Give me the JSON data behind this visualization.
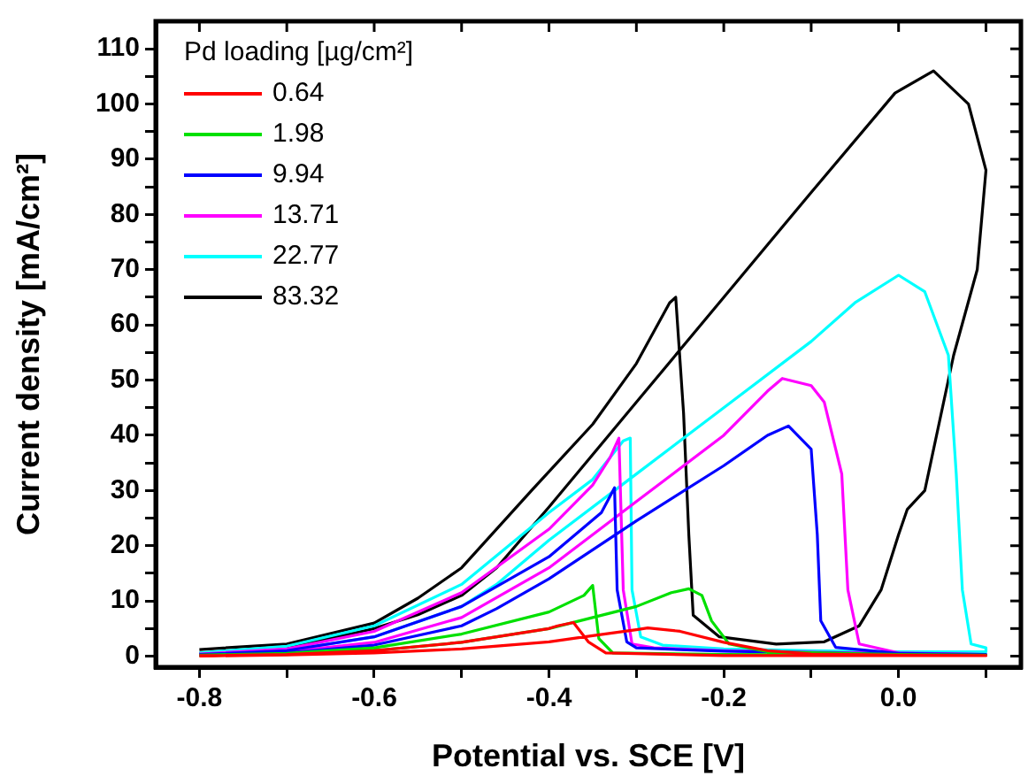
{
  "chart_data": {
    "type": "line",
    "xlabel": "Potential vs. SCE [V]",
    "ylabel": "Current density [mA/cm²]",
    "legend_title": "Pd loading [µg/cm²]",
    "legend": "top left",
    "grid": false,
    "marker": "none",
    "line_style": "solid",
    "xlim": [
      -0.85,
      0.14
    ],
    "ylim": [
      -2,
      115
    ],
    "xticks": [
      -0.8,
      {
        "value": -0.7,
        "label": null
      },
      -0.6,
      {
        "value": -0.5,
        "label": null
      },
      -0.4,
      {
        "value": -0.3,
        "label": null
      },
      -0.2,
      {
        "value": -0.1,
        "label": null
      },
      {
        "value": 0,
        "label": "0.0"
      },
      {
        "value": 0.1,
        "label": null
      }
    ],
    "yticks": [
      0,
      {
        "value": 5,
        "label": null
      },
      10,
      {
        "value": 15,
        "label": null
      },
      20,
      {
        "value": 25,
        "label": null
      },
      30,
      {
        "value": 35,
        "label": null
      },
      40,
      {
        "value": 45,
        "label": null
      },
      50,
      {
        "value": 55,
        "label": null
      },
      60,
      {
        "value": 65,
        "label": null
      },
      70,
      {
        "value": 75,
        "label": null
      },
      80,
      {
        "value": 85,
        "label": null
      },
      90,
      {
        "value": 95,
        "label": null
      },
      100,
      {
        "value": 105,
        "label": null
      },
      110
    ],
    "series": [
      {
        "name": "0.64",
        "color": "#ff0000",
        "x": [
          -0.8,
          -0.7,
          -0.6,
          -0.5,
          -0.4,
          -0.35,
          -0.3,
          -0.287,
          -0.25,
          -0.2,
          -0.15,
          -0.1,
          0,
          0.1,
          0.1,
          -0.2,
          -0.335,
          -0.355,
          -0.372,
          -0.39,
          -0.4,
          -0.5,
          -0.6,
          -0.7,
          -0.8
        ],
        "values": [
          0,
          0.2,
          0.6,
          1.3,
          2.6,
          3.7,
          4.8,
          5.1,
          4.5,
          2.5,
          1,
          0.4,
          0.2,
          0.1,
          0.1,
          0.1,
          0.6,
          2.6,
          6.1,
          5.5,
          5,
          2.5,
          1,
          0.3,
          0.1
        ]
      },
      {
        "name": "1.98",
        "color": "#00e000",
        "x": [
          -0.8,
          -0.7,
          -0.6,
          -0.5,
          -0.4,
          -0.3,
          -0.26,
          -0.24,
          -0.225,
          -0.214,
          -0.194,
          -0.15,
          0,
          0.1,
          0.1,
          0,
          -0.2,
          -0.327,
          -0.343,
          -0.35,
          -0.36,
          -0.4,
          -0.5,
          -0.6,
          -0.7,
          -0.8
        ],
        "values": [
          0.1,
          0.3,
          1,
          2.5,
          5,
          9,
          11.5,
          12.2,
          11,
          6.4,
          2.2,
          0.8,
          0.3,
          0.2,
          0.2,
          0.2,
          0.3,
          0.6,
          3.2,
          12.8,
          11,
          8,
          4,
          1.5,
          0.5,
          0.2
        ]
      },
      {
        "name": "9.94",
        "color": "#0000ff",
        "x": [
          -0.8,
          -0.7,
          -0.6,
          -0.5,
          -0.46,
          -0.4,
          -0.3,
          -0.2,
          -0.15,
          -0.126,
          -0.1,
          -0.093,
          -0.089,
          -0.072,
          0,
          0.1,
          0.1,
          0,
          -0.2,
          -0.3,
          -0.311,
          -0.322,
          -0.325,
          -0.34,
          -0.4,
          -0.5,
          -0.6,
          -0.7,
          -0.8
        ],
        "values": [
          0.2,
          0.6,
          2,
          5.5,
          8.6,
          14,
          24.5,
          34.5,
          40,
          41.7,
          37.5,
          22,
          6.4,
          1.6,
          0.5,
          0.3,
          0.3,
          0.4,
          0.9,
          1.5,
          2.6,
          12,
          30.5,
          26,
          18,
          9,
          3.5,
          1,
          0.3
        ]
      },
      {
        "name": "13.71",
        "color": "#ff00ff",
        "x": [
          -0.8,
          -0.7,
          -0.6,
          -0.5,
          -0.4,
          -0.3,
          -0.2,
          -0.15,
          -0.133,
          -0.1,
          -0.085,
          -0.065,
          -0.058,
          -0.045,
          0,
          0.1,
          0.1,
          0,
          -0.1,
          -0.2,
          -0.28,
          -0.305,
          -0.315,
          -0.32,
          -0.33,
          -0.35,
          -0.4,
          -0.5,
          -0.6,
          -0.7,
          -0.8
        ],
        "values": [
          0.2,
          0.8,
          2.5,
          7,
          16,
          28,
          40,
          48,
          50.3,
          49,
          46,
          33,
          12,
          2.2,
          0.6,
          0.3,
          0.3,
          0.5,
          0.7,
          1,
          1.5,
          2.2,
          12,
          39.5,
          36,
          31,
          23,
          11.5,
          4.5,
          1.3,
          0.4
        ]
      },
      {
        "name": "22.77",
        "color": "#00ffff",
        "x": [
          -0.8,
          -0.7,
          -0.6,
          -0.5,
          -0.46,
          -0.4,
          -0.3,
          -0.2,
          -0.1,
          -0.05,
          0,
          0.03,
          0.057,
          0.066,
          0.073,
          0.083,
          0.1,
          0.1,
          0,
          -0.1,
          -0.2,
          -0.27,
          -0.295,
          -0.305,
          -0.307,
          -0.315,
          -0.35,
          -0.4,
          -0.5,
          -0.6,
          -0.7,
          -0.8
        ],
        "values": [
          0.3,
          1,
          3.5,
          9,
          13,
          21,
          33,
          45,
          57,
          64,
          69,
          66,
          54.5,
          33,
          12,
          2.2,
          1.5,
          0.8,
          0.8,
          1,
          1.3,
          2,
          3.5,
          12,
          39.5,
          39,
          32,
          26,
          13,
          5.5,
          1.8,
          0.6
        ]
      },
      {
        "name": "83.32",
        "color": "#000000",
        "x": [
          -0.8,
          -0.7,
          -0.6,
          -0.55,
          -0.5,
          -0.46,
          -0.4,
          -0.3,
          -0.2,
          -0.1,
          -0.004,
          0.04,
          0.08,
          0.1,
          0.09,
          0.063,
          0.03,
          0.01,
          0,
          -0.02,
          -0.045,
          -0.085,
          -0.14,
          -0.205,
          -0.235,
          -0.24,
          -0.246,
          -0.255,
          -0.262,
          -0.3,
          -0.35,
          -0.42,
          -0.5,
          -0.55,
          -0.6,
          -0.7,
          -0.8
        ],
        "values": [
          0.5,
          1.5,
          5,
          7.5,
          11,
          16,
          27,
          46,
          65,
          84,
          102,
          106,
          100,
          88,
          70,
          54.5,
          30,
          26.6,
          22,
          12,
          5.5,
          2.6,
          2.2,
          3.5,
          7.4,
          22,
          44,
          65,
          64,
          53,
          42,
          30,
          16,
          10.5,
          6,
          2.2,
          1.2
        ]
      }
    ]
  }
}
